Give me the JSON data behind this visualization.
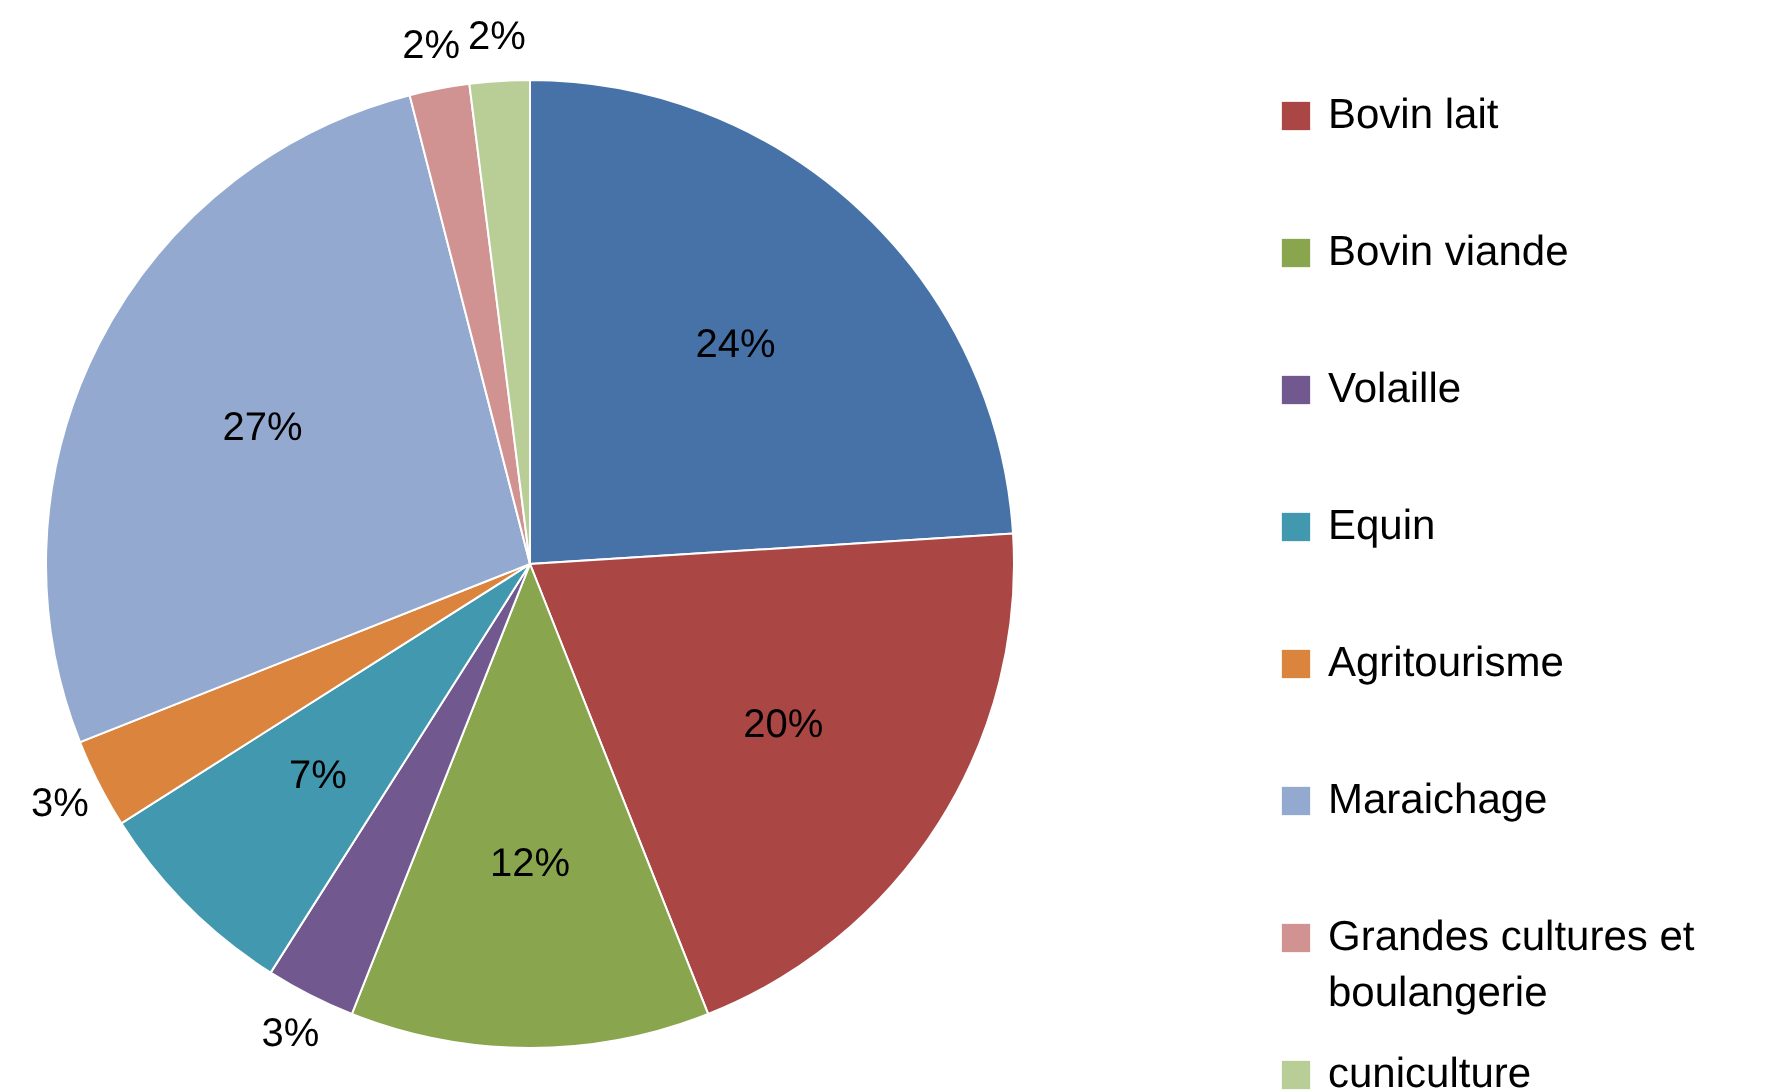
{
  "chart_data": {
    "type": "pie",
    "categories": [
      null,
      "Bovin lait",
      "Bovin viande",
      "Volaille",
      "Equin",
      "Agritourisme",
      "Maraichage",
      "Grandes cultures et boulangerie",
      "cuniculture"
    ],
    "values": [
      24,
      20,
      12,
      3,
      7,
      3,
      27,
      2,
      2
    ],
    "value_labels": [
      "24%",
      "20%",
      "12%",
      "3%",
      "7%",
      "3%",
      "27%",
      "2%",
      "2%"
    ],
    "colors": [
      "#4672a8",
      "#aa4644",
      "#89a54e",
      "#71588f",
      "#4198af",
      "#db843d",
      "#93a9cf",
      "#d19392",
      "#b9cd96"
    ],
    "legend": "right"
  }
}
